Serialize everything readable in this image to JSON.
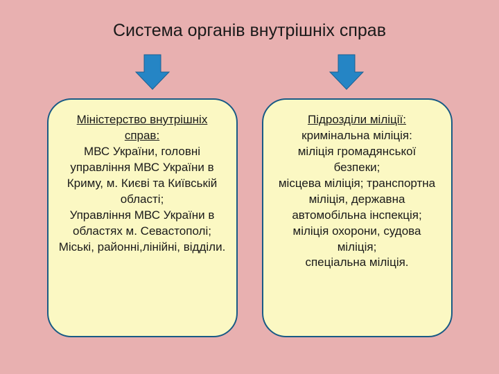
{
  "title": "Система органів внутрішніх справ",
  "arrow": {
    "fill": "#2585c5",
    "stroke": "#1c5f91",
    "stroke_width": 1
  },
  "box_style": {
    "background": "#fbf8c3",
    "border_color": "#185a85",
    "border_width": 2,
    "border_radius": 35
  },
  "left": {
    "heading": "Міністерство внутрішніх справ:",
    "body": "МВС України, головні управління МВС України в Криму, м. Києві та Київській області;\nУправління МВС України в областях  м. Севастополі;\nМіські, районні,лінійні, відділи."
  },
  "right": {
    "heading": "Підрозділи міліції:",
    "body": "кримінальна міліція:\nміліція громадянської безпеки;\nмісцева міліція; транспортна міліція, державна автомобільна інспекція;\nміліція охорони, судова міліція;\nспеціальна міліція."
  },
  "colors": {
    "page_bg": "#e8b0b0",
    "text": "#1a1a1a"
  }
}
